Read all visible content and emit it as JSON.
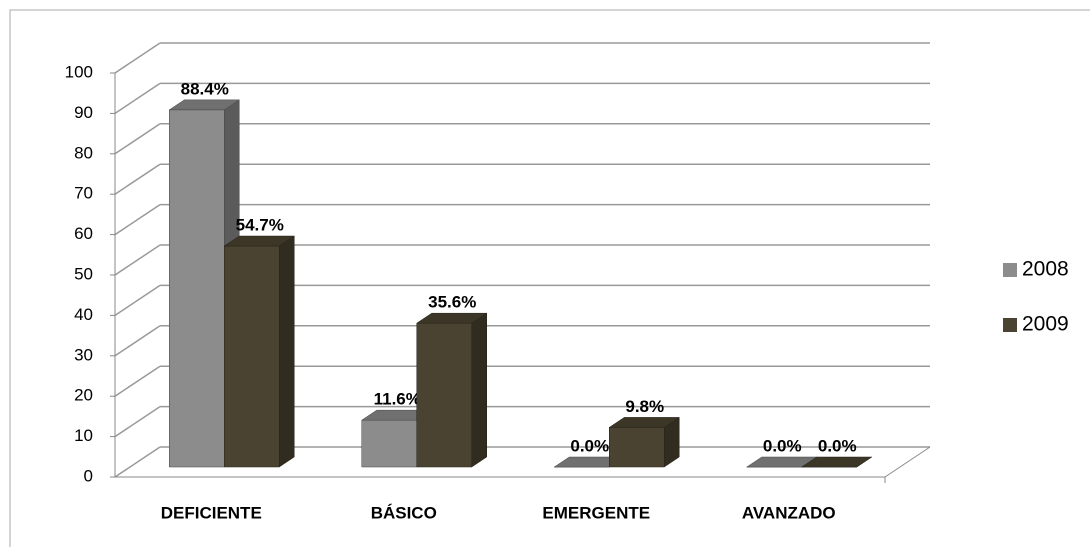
{
  "chart_data": {
    "type": "bar3d",
    "categories": [
      "DEFICIENTE",
      "BÁSICO",
      "EMERGENTE",
      "AVANZADO"
    ],
    "series": [
      {
        "name": "2008",
        "color": "#8c8c8c",
        "values": [
          88.4,
          11.6,
          0,
          0
        ],
        "value_labels": [
          "88.4%",
          "11.6%",
          "0.0%",
          "0.0%"
        ]
      },
      {
        "name": "2009",
        "color": "#4b4331",
        "values": [
          54.7,
          35.6,
          9.8,
          0
        ],
        "value_labels": [
          "54.7%",
          "35.6%",
          "9.8%",
          "0.0%"
        ]
      }
    ],
    "ylim": [
      0,
      100
    ],
    "yticks": [
      0,
      10,
      20,
      30,
      40,
      50,
      60,
      70,
      80,
      90,
      100
    ],
    "grid": true,
    "legend": "right"
  }
}
